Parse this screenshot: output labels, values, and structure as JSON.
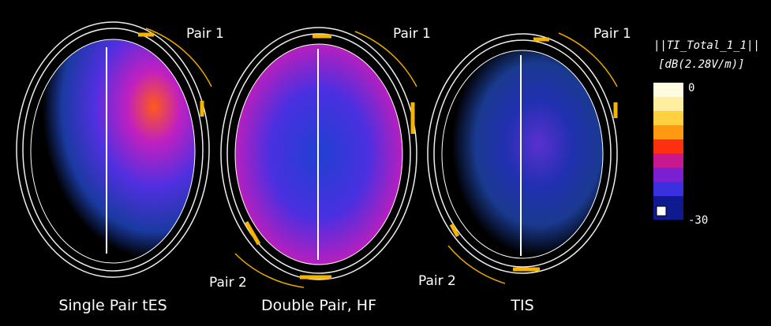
{
  "panels": [
    {
      "label": "Single Pair tES",
      "pairs": [
        "Pair 1"
      ]
    },
    {
      "label": "Double Pair, HF",
      "pairs": [
        "Pair 1",
        "Pair 2"
      ]
    },
    {
      "label": "TIS",
      "pairs": [
        "Pair 1",
        "Pair 2"
      ]
    }
  ],
  "colorbar": {
    "title": [
      "||TI_Total_1_1||",
      "[dB(2.28V/m)]"
    ],
    "max": "0",
    "min": "-30"
  }
}
